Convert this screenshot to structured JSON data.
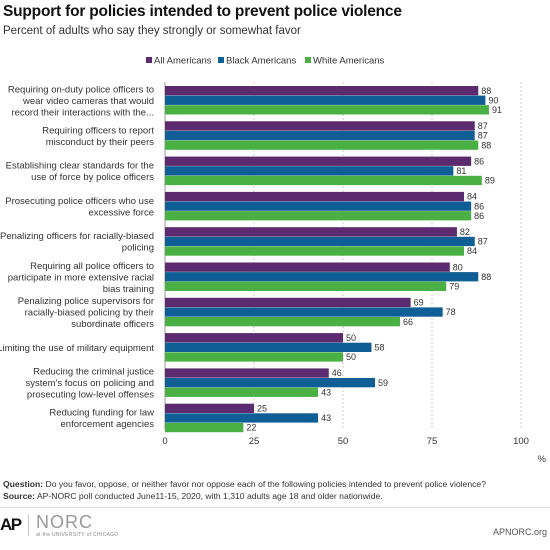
{
  "header": {
    "title": "Support for policies intended to prevent police violence",
    "subtitle": "Percent of adults who say they strongly or somewhat favor"
  },
  "footnote": {
    "question_label": "Question:",
    "question_text": " Do you favor, oppose, or neither favor nor oppose each of the following policies  intended to prevent police violence?",
    "source_label": "Source:",
    "source_text": " AP-NORC poll conducted June11-15, 2020, with 1,310 adults age 18 and older nationwide."
  },
  "logos": {
    "ap": "AP",
    "norc": "NORC",
    "norc_sub": "at the UNIVERSITY of CHICAGO",
    "site": "APNORC.org"
  },
  "colors": {
    "all_americans": "#5c2a6e",
    "black_americans": "#0f5e96",
    "white_americans": "#4ab043",
    "grid": "#cccccc"
  },
  "chart_data": {
    "type": "bar",
    "orientation": "horizontal",
    "categories": [
      [
        "Requiring on-duty police officers to",
        "wear video cameras that would",
        "record their interactions with the..."
      ],
      [
        "Requiring officers to report",
        "misconduct by their peers"
      ],
      [
        "Establishing clear standards for the",
        "use of force by police officers"
      ],
      [
        "Prosecuting police officers who use",
        "excessive force"
      ],
      [
        "Penalizing officers for racially-biased",
        "policing"
      ],
      [
        "Requiring all police officers to",
        "participate in more extensive racial",
        "bias training"
      ],
      [
        "Penalizing police supervisors for",
        "racially-biased policing by their",
        "subordinate officers"
      ],
      [
        "Limiting the use of military equipment"
      ],
      [
        "Reducing the criminal justice",
        "system's focus on policing and",
        "prosecuting low-level offenses"
      ],
      [
        "Reducing funding for law",
        "enforcement agencies"
      ]
    ],
    "series": [
      {
        "name": "All Americans",
        "color": "#5c2a6e",
        "values": [
          88,
          87,
          86,
          84,
          82,
          80,
          69,
          50,
          46,
          25
        ]
      },
      {
        "name": "Black Americans",
        "color": "#0f5e96",
        "values": [
          90,
          87,
          81,
          86,
          87,
          88,
          78,
          58,
          59,
          43
        ]
      },
      {
        "name": "White Americans",
        "color": "#4ab043",
        "values": [
          91,
          88,
          89,
          86,
          84,
          79,
          66,
          50,
          43,
          22
        ]
      }
    ],
    "xlim": [
      0,
      100
    ],
    "xticks": [
      0,
      25,
      50,
      75,
      100
    ],
    "xunit": "%",
    "legend_position": "top",
    "grid": true
  }
}
